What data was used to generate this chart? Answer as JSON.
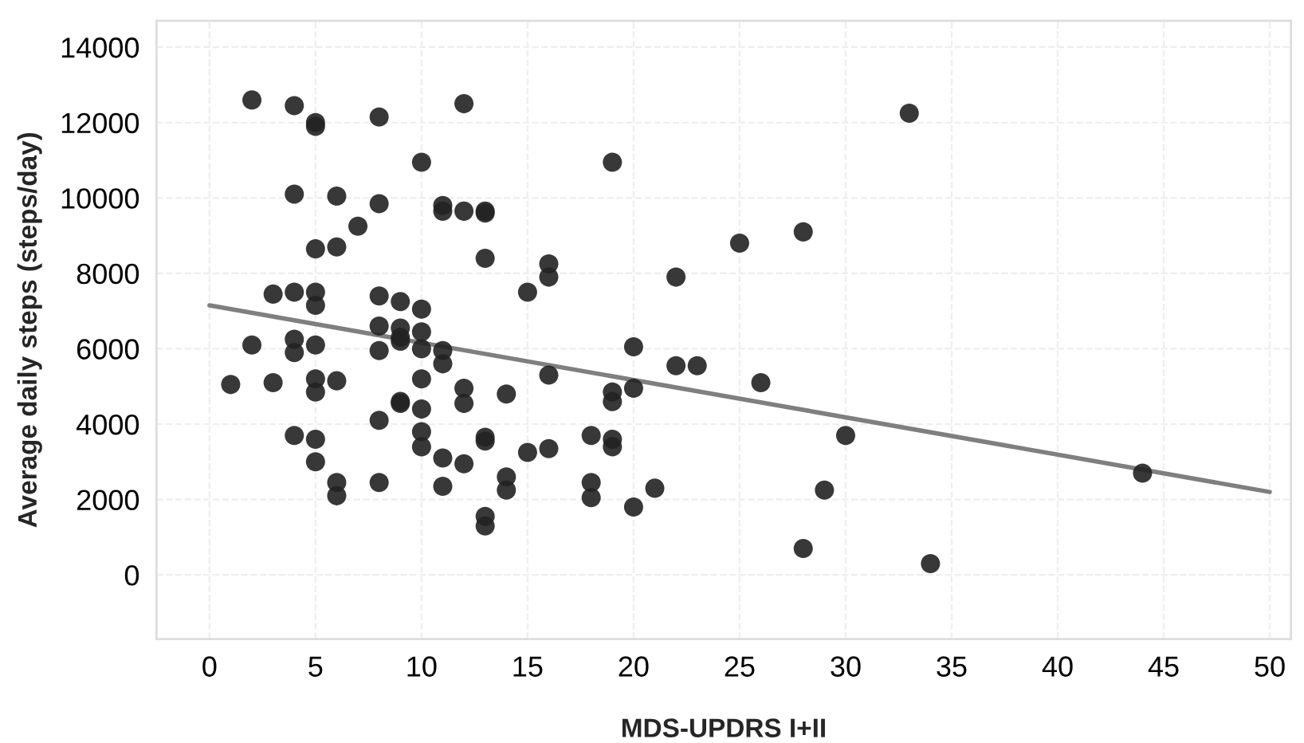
{
  "chart_data": {
    "type": "scatter",
    "xlabel": "MDS-UPDRS I+II",
    "ylabel": "Average daily steps (steps/day)",
    "xlim": [
      -2.5,
      51
    ],
    "ylim": [
      -1700,
      14700
    ],
    "xticks": [
      0,
      5,
      10,
      15,
      20,
      25,
      30,
      35,
      40,
      45,
      50
    ],
    "yticks": [
      0,
      2000,
      4000,
      6000,
      8000,
      10000,
      12000,
      14000
    ],
    "grid": true,
    "series": [
      {
        "marker": "circle",
        "color": "#222222",
        "x": [
          1,
          2,
          2,
          3,
          3,
          4,
          4,
          4,
          4,
          4,
          4,
          5,
          5,
          5,
          5,
          5,
          5,
          5,
          5,
          5,
          5,
          6,
          6,
          6,
          6,
          6,
          7,
          8,
          8,
          8,
          8,
          8,
          8,
          8,
          9,
          9,
          9,
          9,
          9,
          9,
          10,
          10,
          10,
          10,
          10,
          10,
          10,
          10,
          11,
          11,
          11,
          11,
          11,
          11,
          12,
          12,
          12,
          12,
          12,
          13,
          13,
          13,
          13,
          13,
          13,
          13,
          14,
          14,
          14,
          15,
          15,
          16,
          16,
          16,
          16,
          18,
          18,
          18,
          19,
          19,
          19,
          19,
          19,
          20,
          20,
          20,
          21,
          22,
          22,
          23,
          25,
          26,
          28,
          28,
          29,
          30,
          33,
          34,
          44
        ],
        "values": [
          5050,
          12600,
          6100,
          7450,
          5100,
          12450,
          10100,
          7500,
          6250,
          5900,
          3700,
          12000,
          11900,
          8650,
          7500,
          7150,
          6100,
          5200,
          4850,
          3600,
          3000,
          10050,
          8700,
          5150,
          2450,
          2100,
          9250,
          12150,
          9850,
          7400,
          6600,
          5950,
          4100,
          2450,
          7250,
          6550,
          6300,
          6200,
          4600,
          4550,
          10950,
          7050,
          6450,
          6000,
          5200,
          4400,
          3800,
          3400,
          9800,
          9650,
          5950,
          5600,
          3100,
          2350,
          12500,
          9650,
          4950,
          4550,
          2950,
          9650,
          9600,
          8400,
          3650,
          3550,
          1550,
          1300,
          4800,
          2600,
          2250,
          7500,
          3250,
          8250,
          7900,
          5300,
          3350,
          3700,
          2450,
          2050,
          10950,
          4850,
          4600,
          3600,
          3400,
          6050,
          4950,
          1800,
          2300,
          7900,
          5550,
          5550,
          8800,
          5100,
          9100,
          700,
          2250,
          3700,
          12250,
          300,
          2700
        ]
      },
      {
        "type": "line",
        "color": "#7f7f7f",
        "x": [
          0,
          50
        ],
        "values": [
          7150,
          2200
        ]
      }
    ]
  }
}
